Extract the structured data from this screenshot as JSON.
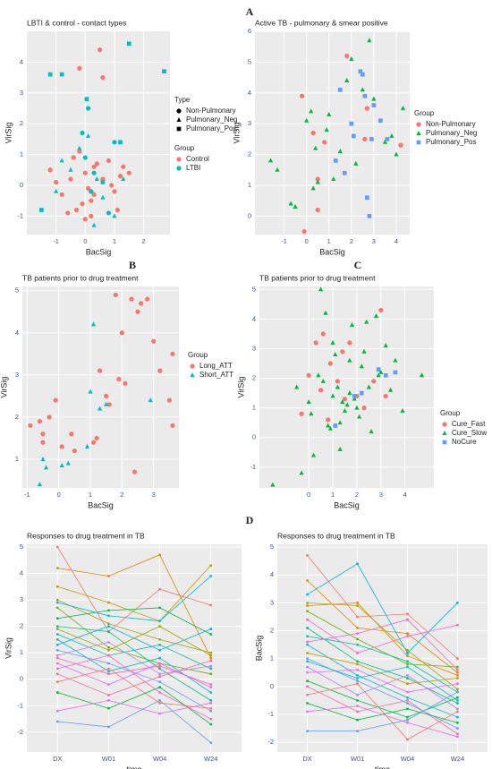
{
  "panel_labels": [
    "A",
    "B",
    "C",
    "D"
  ],
  "chart_data": [
    {
      "type": "scatter",
      "title": "LBTI & control - contact types",
      "x_label": "BacSig",
      "y_label": "VirSig",
      "xlim": [
        -2.0,
        2.9
      ],
      "ylim": [
        -1.6,
        5.0
      ],
      "xticks": [
        -1,
        0,
        1,
        2
      ],
      "yticks": [
        -1,
        0,
        1,
        2,
        3,
        4
      ],
      "grid": true,
      "legends": [
        {
          "title": "Type",
          "entries": [
            {
              "label": "Non-Pulmonary",
              "shape": "circle"
            },
            {
              "label": "Pulmonary_Neg",
              "shape": "triangle"
            },
            {
              "label": "Pulmonary_Pos",
              "shape": "square"
            }
          ]
        },
        {
          "title": "Group",
          "entries": [
            {
              "label": "Control",
              "color": "#F8766D"
            },
            {
              "label": "LTBI",
              "color": "#00BFC4"
            }
          ]
        }
      ],
      "series": [
        {
          "color": "#F8766D",
          "shape": "circle",
          "x": [
            -1.2,
            -0.8,
            -0.5,
            -0.3,
            -0.2,
            0,
            0.1,
            0.2,
            0.3,
            0.5,
            0.8,
            1,
            1.2,
            -1,
            -0.6,
            0,
            0.4,
            0.6,
            1.1,
            1.3,
            -0.1,
            0.2,
            -0.4,
            0.9,
            1.5,
            -0.2,
            0.6,
            0.3
          ],
          "y": [
            0.5,
            -0.3,
            0.2,
            -0.8,
            3.8,
            0.4,
            -0.1,
            -0.5,
            0.6,
            4.4,
            0.8,
            -0.2,
            0.3,
            0.1,
            -0.9,
            -1.1,
            0.7,
            3.5,
            -0.8,
            0.6,
            -0.6,
            -1,
            0.9,
            0,
            0.4,
            1.1,
            0.2,
            -0.3
          ]
        },
        {
          "color": "#F8766D",
          "shape": "triangle",
          "x": [
            0.3,
            -0.4
          ],
          "y": [
            -0.3,
            0.9
          ]
        },
        {
          "color": "#00BFC4",
          "shape": "circle",
          "x": [
            -0.1,
            0,
            0.1,
            0.2,
            0.3,
            1,
            0.8
          ],
          "y": [
            1.7,
            0.9,
            2.5,
            -0.2,
            0.4,
            1.4,
            -0.9
          ]
        },
        {
          "color": "#00BFC4",
          "shape": "triangle",
          "x": [
            -0.5,
            -0.2,
            0.4,
            1,
            -1,
            0.1,
            0.6,
            1.3,
            -0.8,
            0.3
          ],
          "y": [
            0.5,
            1.2,
            0.2,
            -1,
            -0.2,
            1.6,
            -0.4,
            0.2,
            0.8,
            -1.3
          ]
        },
        {
          "color": "#00BFC4",
          "shape": "square",
          "x": [
            -1.2,
            0.05,
            1.5,
            2.7,
            -0.8,
            1.2,
            0.6,
            -1.5
          ],
          "y": [
            3.6,
            2.8,
            4.6,
            3.7,
            3.6,
            1.4,
            0.1,
            -0.8
          ]
        }
      ]
    },
    {
      "type": "scatter",
      "title": "Active TB - pulmonary & smear positive",
      "x_label": "BacSig",
      "y_label": "VirSig",
      "xlim": [
        -2.3,
        4.6
      ],
      "ylim": [
        -0.6,
        6.0
      ],
      "xticks": [
        -1,
        0,
        1,
        2,
        3,
        4
      ],
      "yticks": [
        0,
        1,
        2,
        3,
        4,
        5,
        6
      ],
      "grid": true,
      "legend_title": "Group",
      "series": [
        {
          "name": "Non-Pulmonary",
          "color": "#F8766D",
          "shape": "circle",
          "x": [
            1.8,
            0.8,
            2.7,
            -0.2,
            0.3,
            0.5,
            0.5,
            4.2,
            2.6,
            -0.1
          ],
          "y": [
            5.2,
            2.4,
            3.5,
            3.9,
            2.7,
            0.2,
            1.2,
            2.3,
            2.5,
            -0.5
          ]
        },
        {
          "name": "Pulmonary_Neg",
          "color": "#00BA38",
          "shape": "triangle",
          "x": [
            -1.6,
            -1.3,
            -0.7,
            -0.5,
            0,
            0.2,
            0.4,
            0.5,
            1,
            1.2,
            1.5,
            2,
            2.5,
            2.8,
            3,
            3.5,
            3.8,
            4,
            4.3,
            2.2,
            0.3,
            1.8,
            0.9
          ],
          "y": [
            1.8,
            1.5,
            0.4,
            0.3,
            3.1,
            3.4,
            2.2,
            1.1,
            3.3,
            1.2,
            2.1,
            5.1,
            4.1,
            5.7,
            3.8,
            2.4,
            2.6,
            2,
            3.5,
            1.7,
            0.9,
            4.4,
            2.8
          ]
        },
        {
          "name": "Pulmonary_Pos",
          "color": "#619CFF",
          "shape": "square",
          "x": [
            1.5,
            1.7,
            2,
            2.4,
            2.5,
            2.7,
            2.8,
            3,
            3.3,
            2.1,
            1.3,
            2.6,
            2.9,
            3.6
          ],
          "y": [
            4.1,
            1.4,
            3,
            4.7,
            4.6,
            0.6,
            0,
            3.6,
            3.1,
            2.6,
            1.8,
            3.9,
            2.5,
            2.5
          ]
        }
      ]
    },
    {
      "type": "scatter",
      "title": "TB patients prior to drug treatment",
      "x_label": "BacSig",
      "y_label": "VirSig",
      "xlim": [
        -1.15,
        3.8
      ],
      "ylim": [
        0.32,
        5.1
      ],
      "xticks": [
        -1,
        0,
        1,
        2,
        3
      ],
      "yticks": [
        1,
        2,
        3,
        4,
        5
      ],
      "grid": true,
      "legend_title": "Group",
      "series": [
        {
          "name": "Long_ATT",
          "color": "#F8766D",
          "shape": "circle",
          "x": [
            -0.9,
            -0.6,
            -0.5,
            -0.5,
            -0.1,
            0.4,
            0.5,
            1.1,
            1.2,
            1.5,
            1.6,
            1.8,
            2,
            2.1,
            2.3,
            2.5,
            2.6,
            2.8,
            3,
            3.2,
            3.6,
            3.6,
            3.5,
            2.4,
            1.9,
            1.3,
            0.1,
            -0.3
          ],
          "y": [
            1.8,
            1.9,
            1.6,
            1.4,
            2.4,
            1.6,
            1.2,
            1.4,
            1.5,
            2.5,
            2.3,
            4.9,
            4,
            2.8,
            4.8,
            4.5,
            4.7,
            4.8,
            3.8,
            3.1,
            3.5,
            1.8,
            2.4,
            0.7,
            2.9,
            3.1,
            1.3,
            2.0
          ]
        },
        {
          "name": "Short_ATT",
          "color": "#00BFC4",
          "shape": "triangle",
          "x": [
            -0.6,
            -0.5,
            -0.4,
            0.1,
            0.3,
            1,
            1.1,
            1.3,
            1.5,
            2.9,
            0.9
          ],
          "y": [
            0.4,
            1,
            0.8,
            0.85,
            0.9,
            2.6,
            4.2,
            2.2,
            2.3,
            2.4,
            1.3
          ]
        }
      ]
    },
    {
      "type": "scatter",
      "title": "TB patients prior to drug treatment",
      "x_label": "BacSig",
      "y_label": "VirSig",
      "xlim": [
        -2.05,
        5.2
      ],
      "ylim": [
        -1.7,
        5.1
      ],
      "xticks": [
        0,
        1,
        2,
        3,
        4
      ],
      "yticks": [
        -1,
        0,
        1,
        2,
        3,
        4,
        5
      ],
      "grid": true,
      "legend_title": "Group",
      "series": [
        {
          "name": "Cure_Fast",
          "color": "#F8766D",
          "shape": "circle",
          "x": [
            0,
            0.3,
            0.6,
            0.9,
            1.2,
            1.5,
            1.7,
            2,
            2.3,
            2.7,
            3,
            3.2,
            0.8,
            1.4,
            -0.3,
            0.5
          ],
          "y": [
            2.1,
            3.2,
            3.5,
            2.5,
            1.9,
            1.3,
            3.2,
            1.4,
            1.0,
            1.9,
            4.3,
            1.4,
            0.6,
            2.9,
            0.8,
            1.6
          ]
        },
        {
          "name": "Cure_Slow",
          "color": "#00BA38",
          "shape": "triangle",
          "x": [
            -1.5,
            -0.5,
            -0.3,
            0,
            0.2,
            0.4,
            0.5,
            0.6,
            0.7,
            0.8,
            1,
            1.1,
            1.2,
            1.3,
            1.4,
            1.5,
            1.6,
            1.7,
            1.8,
            1.9,
            2,
            2.1,
            2.2,
            2.4,
            2.5,
            2.6,
            2.8,
            3,
            3.2,
            3.4,
            3.6,
            3.9,
            4.7,
            0.9,
            1.3,
            1.7,
            2.3,
            2.9,
            0.1,
            1.0
          ],
          "y": [
            -1.6,
            1.7,
            -1.2,
            1.2,
            -0.6,
            2.1,
            5,
            1.9,
            4.2,
            0.4,
            1.4,
            2.8,
            1.7,
            0.5,
            1.2,
            0.9,
            1.1,
            2.6,
            3.8,
            1.3,
            1.0,
            0.7,
            2.4,
            3.9,
            1.7,
            0.2,
            4.1,
            2.2,
            3.1,
            1.6,
            2.6,
            0.9,
            2.1,
            0.3,
            -0.4,
            1.5,
            2.9,
            2.1,
            0.8,
            3.2
          ]
        },
        {
          "name": "NoCure",
          "color": "#619CFF",
          "shape": "square",
          "x": [
            2.2,
            2.9,
            3.2,
            3.6,
            1.9,
            1.1
          ],
          "y": [
            1.5,
            2.3,
            2.1,
            2.2,
            1.4,
            0.4
          ]
        }
      ]
    },
    {
      "type": "line",
      "title": "Responses to drug treatment in TB",
      "x_label": "time",
      "y_label": "VirSig",
      "categories": [
        "DX",
        "W01",
        "W04",
        "W24"
      ],
      "ylim": [
        -2.75,
        5.1
      ],
      "yticks": [
        -2,
        -1,
        0,
        1,
        2,
        3,
        4,
        5
      ],
      "grid": true,
      "series": [
        {
          "color": "#F8766D",
          "values": [
            5,
            1.8,
            3.4,
            2.8
          ]
        },
        {
          "color": "#E58700",
          "values": [
            4.2,
            3.9,
            4.7,
            0.8
          ]
        },
        {
          "color": "#C99800",
          "values": [
            3.5,
            2.9,
            2.2,
            4.3
          ]
        },
        {
          "color": "#A3A500",
          "values": [
            3,
            2.1,
            1.5,
            1
          ]
        },
        {
          "color": "#6BB100",
          "values": [
            2.7,
            1.2,
            0.6,
            0.2
          ]
        },
        {
          "color": "#00BA38",
          "values": [
            2.3,
            2.6,
            2.7,
            1.7
          ]
        },
        {
          "color": "#00BF7D",
          "values": [
            2,
            1.8,
            0.4,
            -0.8
          ]
        },
        {
          "color": "#00C0AF",
          "values": [
            1.7,
            0.9,
            1.3,
            0.4
          ]
        },
        {
          "color": "#00BCD8",
          "values": [
            1.5,
            0.3,
            0.8,
            -0.5
          ]
        },
        {
          "color": "#00B0F6",
          "values": [
            1.3,
            2,
            1.1,
            1.9
          ]
        },
        {
          "color": "#619CFF",
          "values": [
            1.1,
            0.6,
            -0.1,
            -1.2
          ]
        },
        {
          "color": "#B983FF",
          "values": [
            0.9,
            1.4,
            0.2,
            0.5
          ]
        },
        {
          "color": "#E76BF3",
          "values": [
            0.6,
            -0.2,
            0.6,
            -0.3
          ]
        },
        {
          "color": "#FD61D1",
          "values": [
            0.4,
            0.9,
            -0.5,
            -1.5
          ]
        },
        {
          "color": "#FF67A4",
          "values": [
            0.2,
            -0.6,
            0.1,
            0.7
          ]
        },
        {
          "color": "#F8766D",
          "values": [
            -0.1,
            0.4,
            -0.9,
            -1.1
          ]
        },
        {
          "color": "#00BA38",
          "values": [
            -0.5,
            -1.1,
            -0.3,
            -1.7
          ]
        },
        {
          "color": "#E76BF3",
          "values": [
            -1.2,
            -0.8,
            -1.3,
            -0.9
          ]
        },
        {
          "color": "#619CFF",
          "values": [
            -1.6,
            -1.8,
            -0.8,
            -2.4
          ]
        },
        {
          "color": "#00BCD8",
          "values": [
            2.9,
            2.4,
            2.2,
            3.9
          ]
        },
        {
          "color": "#A3A500",
          "values": [
            1.9,
            1.1,
            2.0,
            0.9
          ]
        },
        {
          "color": "#FF67A4",
          "values": [
            0.8,
            0.2,
            0.5,
            -0.2
          ]
        }
      ]
    },
    {
      "type": "line",
      "title": "Responses to drug treatment in TB",
      "x_label": "time",
      "y_label": "BacSig",
      "categories": [
        "DX",
        "W01",
        "W04",
        "W24"
      ],
      "ylim": [
        -2.35,
        5.1
      ],
      "yticks": [
        -2,
        -1,
        0,
        1,
        2,
        3,
        4,
        5
      ],
      "grid": true,
      "series": [
        {
          "color": "#F8766D",
          "values": [
            4.7,
            2.5,
            2.6,
            1
          ]
        },
        {
          "color": "#E58700",
          "values": [
            3.8,
            2.1,
            1.9,
            0.5
          ]
        },
        {
          "color": "#00B0F6",
          "values": [
            3.3,
            4.4,
            1.2,
            3
          ]
        },
        {
          "color": "#A3A500",
          "values": [
            3,
            2.9,
            1.3,
            -0.1
          ]
        },
        {
          "color": "#6BB100",
          "values": [
            2.7,
            1.7,
            0.8,
            0.7
          ]
        },
        {
          "color": "#FD61D1",
          "values": [
            2.4,
            1.2,
            1.8,
            2.2
          ]
        },
        {
          "color": "#00BF7D",
          "values": [
            2.1,
            0.9,
            0.3,
            -0.6
          ]
        },
        {
          "color": "#00C0AF",
          "values": [
            1.8,
            1.5,
            0.9,
            -0.2
          ]
        },
        {
          "color": "#00BCD8",
          "values": [
            1.5,
            0.4,
            -0.4,
            -1.1
          ]
        },
        {
          "color": "#C99800",
          "values": [
            1.2,
            0.8,
            0.1,
            0.3
          ]
        },
        {
          "color": "#619CFF",
          "values": [
            1,
            0.2,
            -0.6,
            -1.5
          ]
        },
        {
          "color": "#B983FF",
          "values": [
            0.7,
            -0.3,
            0.4,
            -0.8
          ]
        },
        {
          "color": "#E76BF3",
          "values": [
            0.5,
            0.6,
            -0.2,
            0.1
          ]
        },
        {
          "color": "#00BA38",
          "values": [
            0.2,
            -0.5,
            -1.1,
            -0.4
          ]
        },
        {
          "color": "#FF67A4",
          "values": [
            0,
            -0.9,
            -0.5,
            -1.7
          ]
        },
        {
          "color": "#F8766D",
          "values": [
            -0.3,
            0.1,
            -1.9,
            -0.9
          ]
        },
        {
          "color": "#00BA38",
          "values": [
            -0.6,
            -1.2,
            -0.8,
            -1.3
          ]
        },
        {
          "color": "#E76BF3",
          "values": [
            -0.9,
            -0.7,
            -1.3,
            -1.8
          ]
        },
        {
          "color": "#619CFF",
          "values": [
            -1.6,
            -1.6,
            -1.2,
            -0.2
          ]
        },
        {
          "color": "#E58700",
          "values": [
            2.9,
            3,
            1.1,
            0.4
          ]
        },
        {
          "color": "#FD61D1",
          "values": [
            1.6,
            1.9,
            2.4,
            0.6
          ]
        },
        {
          "color": "#00BCD8",
          "values": [
            0.9,
            0.3,
            0.7,
            -0.5
          ]
        }
      ]
    }
  ]
}
